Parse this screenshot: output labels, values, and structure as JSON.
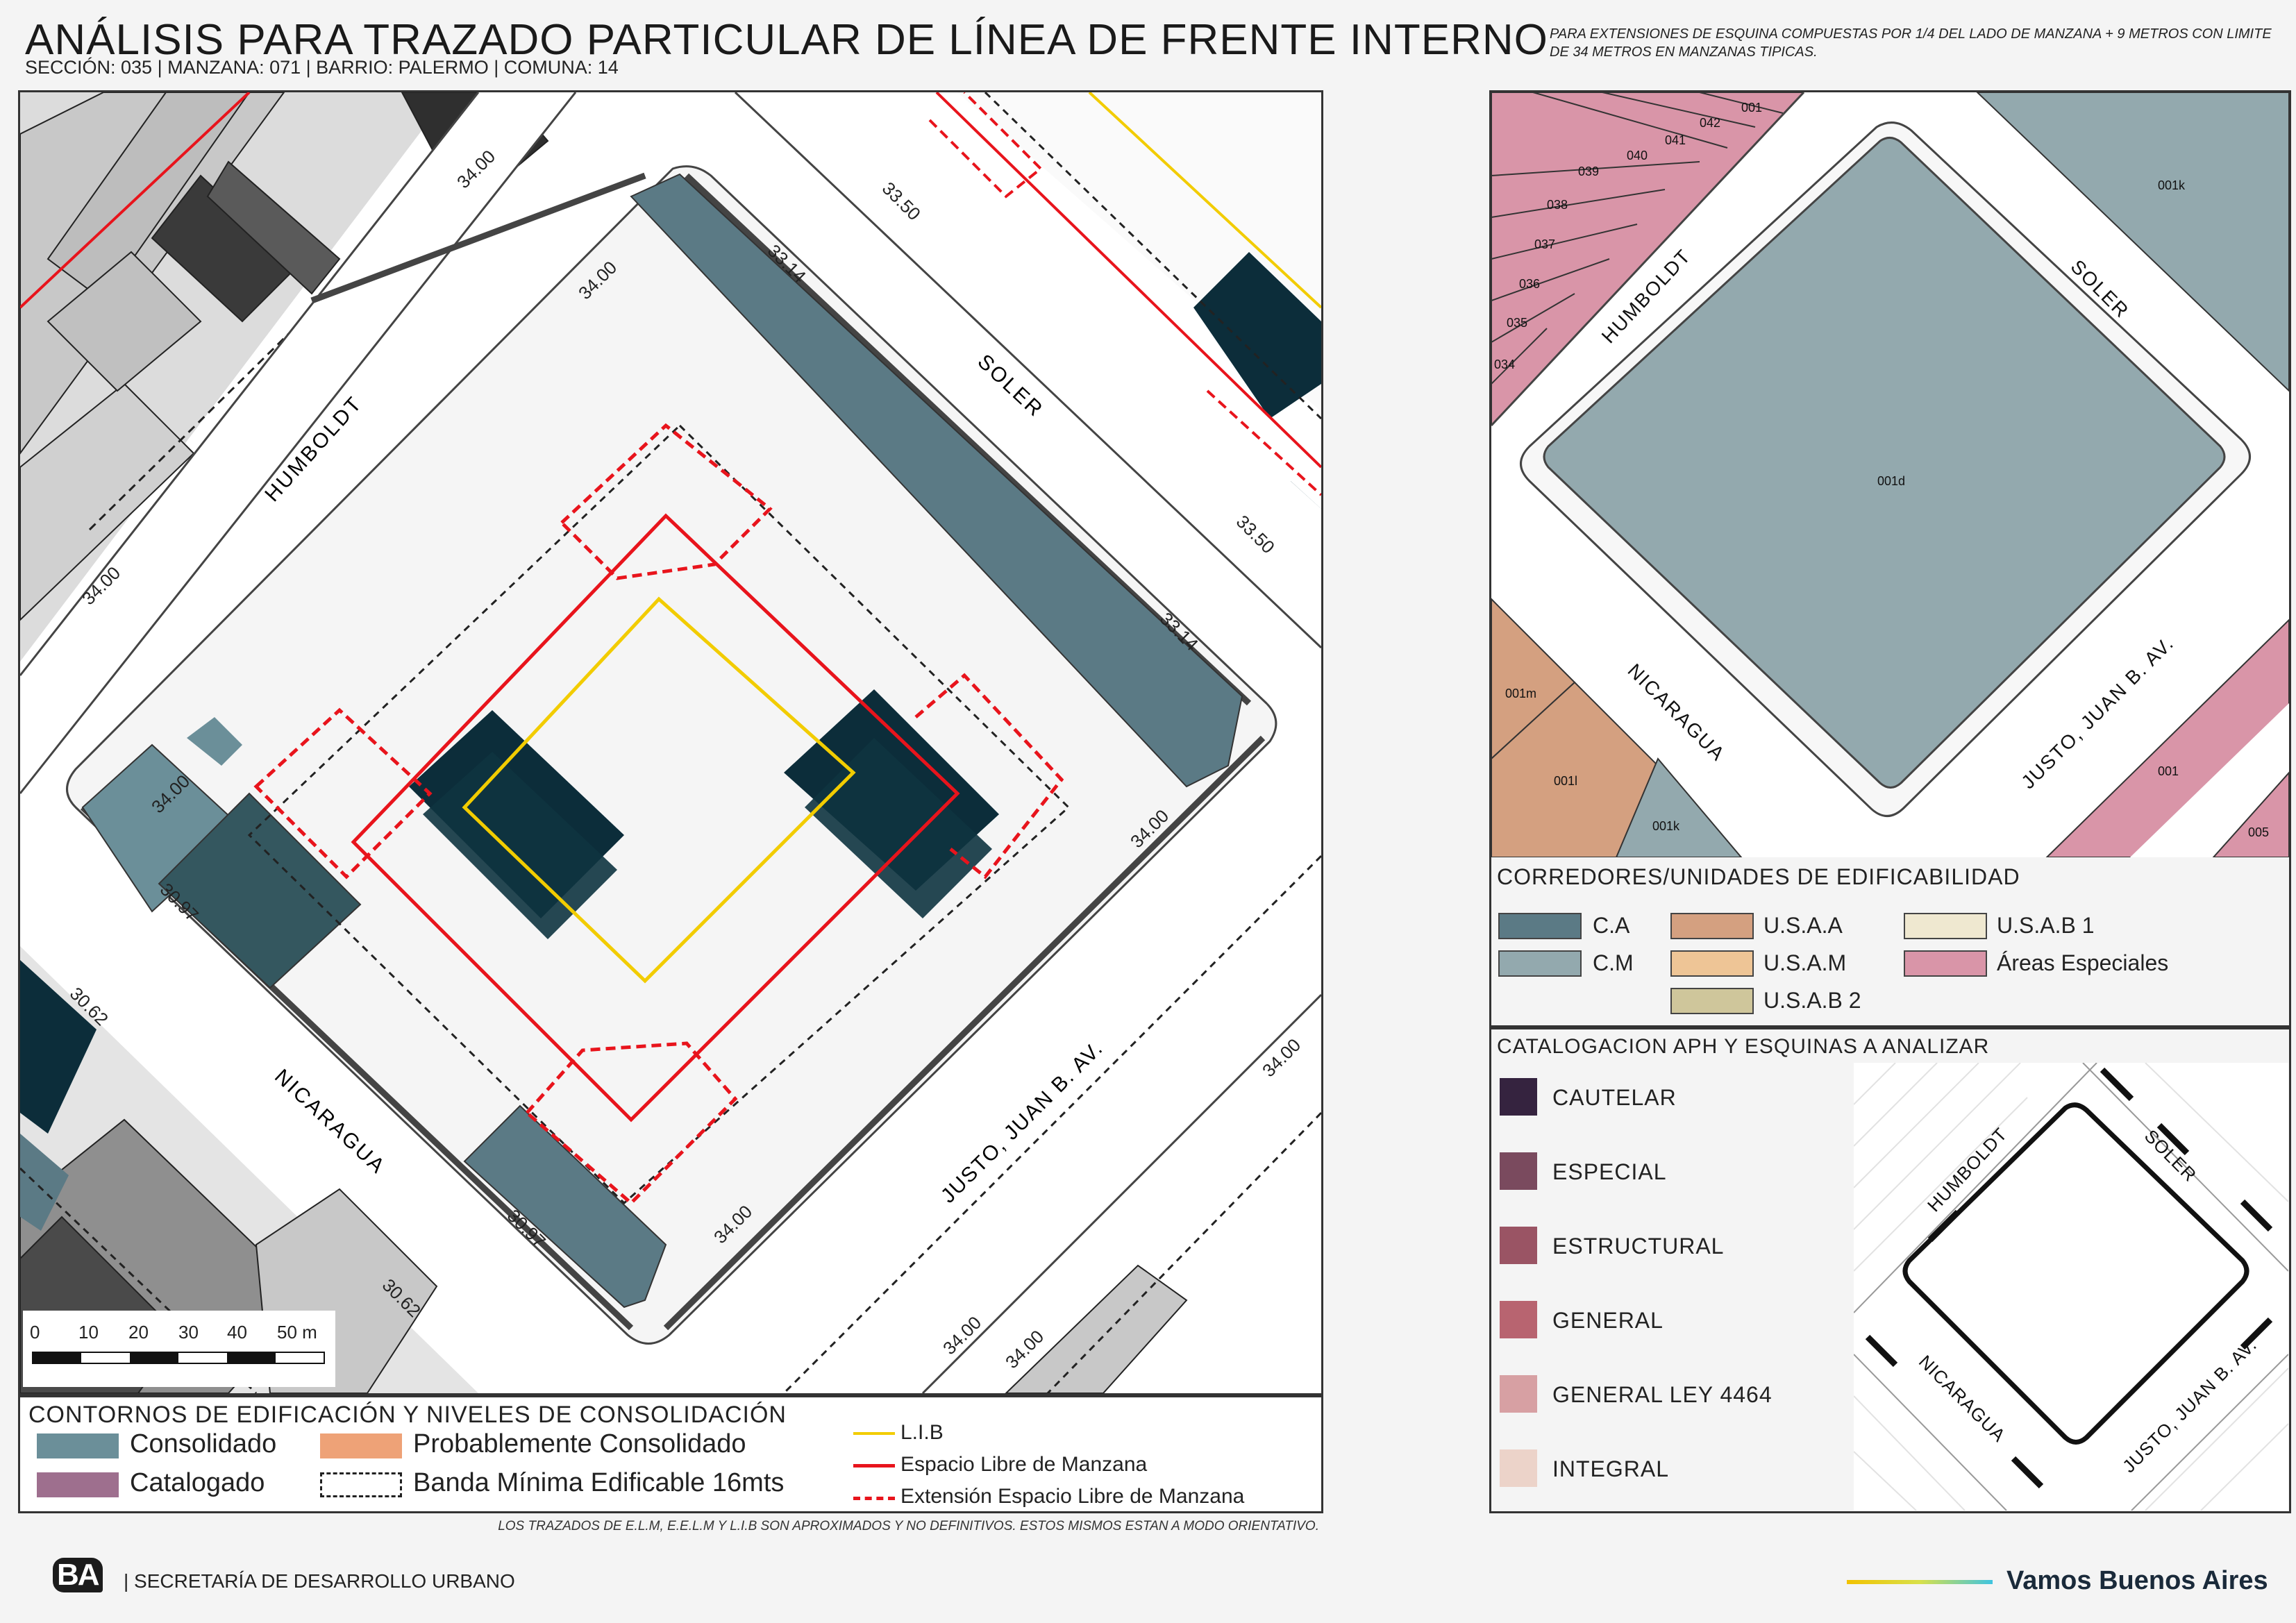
{
  "header": {
    "title": "ANÁLISIS PARA TRAZADO PARTICULAR DE LÍNEA DE FRENTE INTERNO",
    "subtitle": "SECCIÓN: 035 |  MANZANA: 071 | BARRIO: PALERMO | COMUNA: 14",
    "note": "PARA EXTENSIONES DE ESQUINA COMPUESTAS POR 1/4 DEL LADO DE MANZANA + 9 METROS CON LIMITE DE 34 METROS EN MANZANAS TIPICAS."
  },
  "main_map": {
    "streets": {
      "humboldt": "HUMBOLDT",
      "soler": "SOLER",
      "nicaragua": "NICARAGUA",
      "justo": "JUSTO, JUAN B. AV."
    },
    "dimensions": {
      "d3400": "34.00",
      "d3350": "33.50",
      "d3314": "33.14",
      "d3097": "30.97",
      "d3062": "30.62"
    },
    "scale": {
      "labels": [
        "0",
        "10",
        "20",
        "30",
        "40",
        "50 m"
      ]
    }
  },
  "legend": {
    "heading": "CONTORNOS DE EDIFICACIÓN Y NIVELES DE CONSOLIDACIÓN",
    "consolidado": "Consolidado",
    "catalogado": "Catalogado",
    "probable": "Probablemente Consolidado",
    "banda": "Banda Mínima Edificable 16mts",
    "lib": "L.I.B",
    "elm": "Espacio Libre de Manzana",
    "eelm": "Extensión Espacio Libre de Manzana",
    "colors": {
      "consolidado": "#6b8f99",
      "catalogado": "#9e6f8e",
      "probable": "#eea277",
      "lib": "#f2cc00",
      "elm": "#e8141c"
    }
  },
  "bottom_note": "LOS TRAZADOS DE E.L.M, E.E.L.M Y L.I.B SON APROXIMADOS Y NO DEFINITIVOS. ESTOS MISMOS ESTAN A MODO ORIENTATIVO.",
  "right_map": {
    "streets": {
      "humboldt": "HUMBOLDT",
      "soler": "SOLER",
      "nicaragua": "NICARAGUA",
      "justo": "JUSTO, JUAN B. AV."
    },
    "parcels": {
      "p001": "001",
      "p042": "042",
      "p041": "041",
      "p040": "040",
      "p039": "039",
      "p038": "038",
      "p037": "037",
      "p036": "036",
      "p035": "035",
      "p034": "034",
      "p001k_top": "001k",
      "p001d": "001d",
      "p001m": "001m",
      "p001l": "001l",
      "p001k_bottom": "001k",
      "p001_right": "001",
      "p005": "005"
    }
  },
  "corredores": {
    "heading": "CORREDORES/UNIDADES DE EDIFICABILIDAD",
    "items": {
      "ca": "C.A",
      "cm": "C.M",
      "usaa": "U.S.A.A",
      "usam": "U.S.A.M",
      "usab2": "U.S.A.B 2",
      "usab1": "U.S.A.B 1",
      "especiales": "Áreas Especiales"
    },
    "colors": {
      "ca": "#5b7a85",
      "cm": "#93a9ae",
      "usaa": "#d4a080",
      "usam": "#eec596",
      "usab2": "#cfc69b",
      "usab1": "#efe8d0",
      "especiales": "#d995a8"
    }
  },
  "aph": {
    "heading": "CATALOGACION APH Y ESQUINAS A ANALIZAR",
    "items": {
      "cautelar": "CAUTELAR",
      "especial": "ESPECIAL",
      "estructural": "ESTRUCTURAL",
      "general": "GENERAL",
      "ley": "GENERAL LEY 4464",
      "integral": "INTEGRAL"
    },
    "colors": {
      "cautelar": "#35233f",
      "especial": "#7a4a5e",
      "estructural": "#9a5464",
      "general": "#b86470",
      "ley": "#d7a0a3",
      "integral": "#ecd3c9"
    },
    "streets": {
      "humboldt": "HUMBOLDT",
      "soler": "SOLER",
      "nicaragua": "NICARAGUA",
      "justo": "JUSTO, JUAN B. AV."
    }
  },
  "footer": {
    "logo": "BA",
    "org": "| SECRETARÍA DE DESARROLLO URBANO",
    "slogan": "Vamos Buenos Aires"
  }
}
